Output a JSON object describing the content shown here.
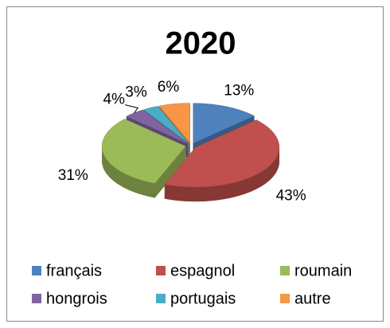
{
  "chart_data": {
    "type": "pie3d",
    "title": "2020",
    "categories": [
      "français",
      "espagnol",
      "roumain",
      "hongrois",
      "portugais",
      "autre"
    ],
    "values": [
      13,
      43,
      31,
      4,
      3,
      6
    ],
    "value_labels": [
      "13%",
      "43%",
      "31%",
      "4%",
      "3%",
      "6%"
    ],
    "colors": [
      "#4f81bd",
      "#c0504d",
      "#9bbb59",
      "#8064a2",
      "#4bacc6",
      "#f79646"
    ],
    "legend": "bottom"
  }
}
